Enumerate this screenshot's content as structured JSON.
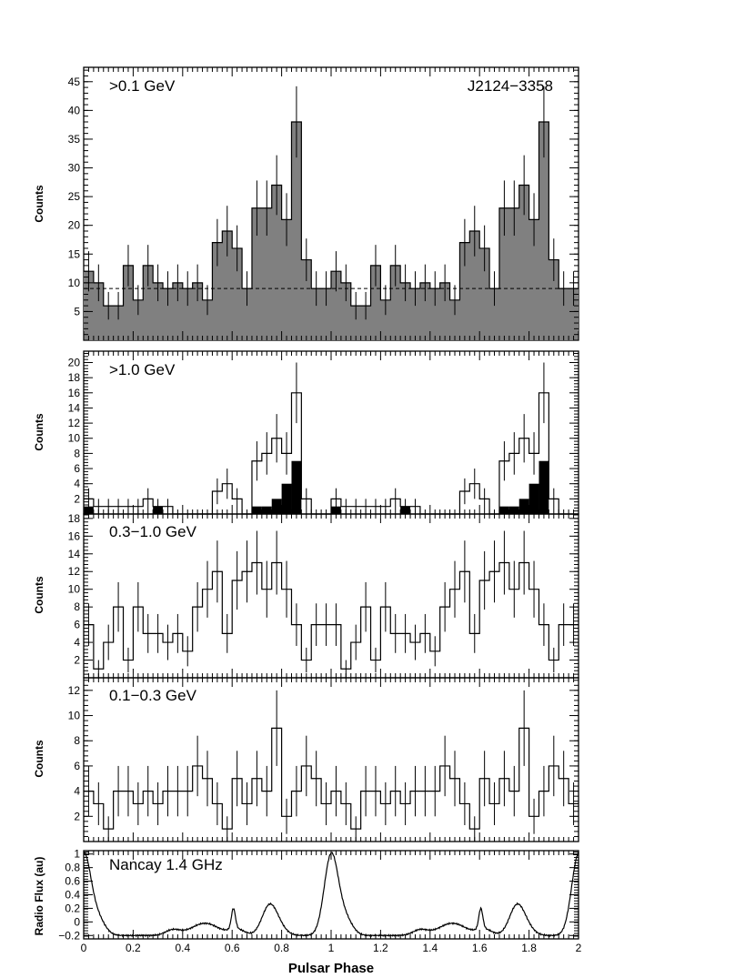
{
  "chart_data": [
    {
      "type": "histogram",
      "label": ">0.1 GeV",
      "label2": "J2124−3358",
      "ylabel": "Counts",
      "xlim": [
        0,
        2
      ],
      "ylim": [
        0,
        47.5
      ],
      "yticks": [
        5,
        10,
        15,
        20,
        25,
        30,
        35,
        40,
        45
      ],
      "background_level": 9,
      "bin_width": 0.04,
      "values": [
        12,
        10,
        6,
        6,
        13,
        7,
        13,
        10,
        9,
        10,
        9,
        10,
        7,
        17,
        19,
        16,
        9,
        23,
        23,
        27,
        21,
        38,
        14,
        9,
        9
      ],
      "errors": [
        3.5,
        3.2,
        2.4,
        2.4,
        3.6,
        2.6,
        3.6,
        3.2,
        3.0,
        3.2,
        3.0,
        3.2,
        2.6,
        4.1,
        4.4,
        4.0,
        3.0,
        4.8,
        4.8,
        5.2,
        4.6,
        6.2,
        3.7,
        3.0,
        3.0
      ],
      "fill": "#808080"
    },
    {
      "type": "histogram",
      "label": ">1.0 GeV",
      "ylabel": "Counts",
      "xlim": [
        0,
        2
      ],
      "ylim": [
        0,
        21.5
      ],
      "yticks": [
        2,
        4,
        6,
        8,
        10,
        12,
        14,
        16,
        18,
        20
      ],
      "bin_width": 0.04,
      "values": [
        2,
        1,
        1,
        1,
        1,
        1,
        2,
        1,
        1,
        0,
        0,
        0,
        0,
        3,
        4,
        2,
        0,
        7,
        8,
        10,
        8,
        16,
        2,
        0,
        0
      ],
      "errors": [
        1.4,
        1.0,
        1.0,
        1.0,
        1.0,
        1.0,
        1.4,
        1.0,
        1.0,
        0,
        0,
        0,
        0,
        1.7,
        2.0,
        1.4,
        0,
        2.6,
        2.8,
        3.2,
        2.8,
        4.0,
        1.4,
        0,
        0
      ],
      "values_high": [
        1,
        0,
        0,
        0,
        0,
        0,
        0,
        1,
        0,
        0,
        0,
        0,
        0,
        0,
        0,
        0,
        0,
        1,
        1,
        2,
        4,
        7,
        0,
        0,
        0
      ],
      "fill_high": "#000000"
    },
    {
      "type": "histogram",
      "label": "0.3−1.0 GeV",
      "ylabel": "Counts",
      "xlim": [
        0,
        2
      ],
      "ylim": [
        0,
        18.5
      ],
      "yticks": [
        2,
        4,
        6,
        8,
        10,
        12,
        14,
        16,
        18
      ],
      "bin_width": 0.04,
      "values": [
        6,
        1,
        4,
        8,
        2,
        8,
        5,
        5,
        4,
        5,
        3,
        8,
        10,
        12,
        5,
        11,
        12,
        13,
        10,
        13,
        10,
        6,
        2,
        6,
        6
      ],
      "errors": [
        2.4,
        1.0,
        2.0,
        2.8,
        1.4,
        2.8,
        2.2,
        2.2,
        2.0,
        2.2,
        1.7,
        2.8,
        3.2,
        3.5,
        2.2,
        3.3,
        3.5,
        3.6,
        3.2,
        3.6,
        3.2,
        2.4,
        1.4,
        2.4,
        2.4
      ]
    },
    {
      "type": "histogram",
      "label": "0.1−0.3 GeV",
      "ylabel": "Counts",
      "xlim": [
        0,
        2
      ],
      "ylim": [
        0,
        13
      ],
      "yticks": [
        2,
        4,
        6,
        8,
        10,
        12
      ],
      "bin_width": 0.04,
      "values": [
        4,
        3,
        1,
        4,
        4,
        3,
        4,
        3,
        4,
        4,
        4,
        6,
        5,
        3,
        1,
        5,
        3,
        5,
        4,
        9,
        2,
        4,
        6,
        5,
        3
      ],
      "errors": [
        2.0,
        1.7,
        1.0,
        2.0,
        2.0,
        1.7,
        2.0,
        1.7,
        2.0,
        2.0,
        2.0,
        2.4,
        2.2,
        1.7,
        1.0,
        2.2,
        1.7,
        2.2,
        2.0,
        3.0,
        1.4,
        2.0,
        2.4,
        2.2,
        1.7
      ]
    },
    {
      "type": "line",
      "label": "Nancay 1.4 GHz",
      "ylabel": "Radio Flux (au)",
      "xlabel": "Pulsar Phase",
      "xlim": [
        0,
        2
      ],
      "ylim": [
        -0.25,
        1.05
      ],
      "yticks": [
        -0.2,
        0,
        0.2,
        0.4,
        0.6,
        0.8,
        1
      ],
      "ytick_labels": [
        "−0.2",
        "0",
        "0.2",
        "0.4",
        "0.6",
        "0.8",
        "1"
      ],
      "xticks": [
        0,
        0.2,
        0.4,
        0.6,
        0.8,
        1,
        1.2,
        1.4,
        1.6,
        1.8,
        2
      ],
      "xtick_labels": [
        "0",
        "0.2",
        "0.4",
        "0.6",
        "0.8",
        "1",
        "1.2",
        "1.4",
        "1.6",
        "1.8",
        "2"
      ],
      "profile_baseline": -0.2,
      "profile_components": [
        {
          "center": 0.0,
          "amp": 1.17,
          "width": 0.028
        },
        {
          "center": 0.055,
          "amp": 0.25,
          "width": 0.03
        },
        {
          "center": 0.36,
          "amp": 0.08,
          "width": 0.03
        },
        {
          "center": 0.49,
          "amp": 0.18,
          "width": 0.055
        },
        {
          "center": 0.605,
          "amp": 0.3,
          "width": 0.008
        },
        {
          "center": 0.62,
          "amp": 0.09,
          "width": 0.03
        },
        {
          "center": 0.75,
          "amp": 0.42,
          "width": 0.03
        },
        {
          "center": 0.79,
          "amp": 0.1,
          "width": 0.03
        }
      ]
    }
  ]
}
